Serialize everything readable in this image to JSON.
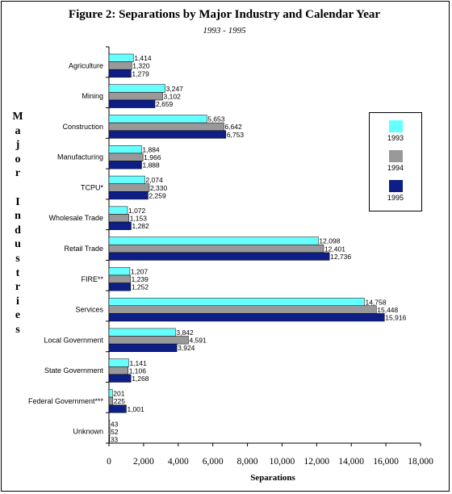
{
  "chart_data": {
    "type": "bar",
    "orientation": "horizontal",
    "title": "Figure 2: Separations by Major Industry and Calendar Year",
    "subtitle": "1993 - 1995",
    "xlabel": "Separations",
    "ylabel": "Major Industries",
    "xlim": [
      0,
      18000
    ],
    "xticks": [
      "0",
      "2,000",
      "4,000",
      "6,000",
      "8,000",
      "10,000",
      "12,000",
      "14,000",
      "16,000",
      "18,000"
    ],
    "categories": [
      "Agriculture",
      "Mining",
      "Construction",
      "Manufacturing",
      "TCPU*",
      "Wholesale Trade",
      "Retail Trade",
      "FIRE**",
      "Services",
      "Local Government",
      "State Government",
      "Federal Government***",
      "Unknown"
    ],
    "series": [
      {
        "name": "1993",
        "color": "#66ffff",
        "values": [
          1414,
          3247,
          5653,
          1884,
          2074,
          1072,
          12098,
          1207,
          14758,
          3842,
          1141,
          201,
          43
        ],
        "labels": [
          "1,414",
          "3,247",
          "5,653",
          "1,884",
          "2,074",
          "1,072",
          "12,098",
          "1,207",
          "14,758",
          "3,842",
          "1,141",
          "201",
          "43"
        ]
      },
      {
        "name": "1994",
        "color": "#999999",
        "values": [
          1320,
          3102,
          6642,
          1966,
          2330,
          1153,
          12401,
          1239,
          15448,
          4591,
          1106,
          225,
          52
        ],
        "labels": [
          "1,320",
          "3,102",
          "6,642",
          "1,966",
          "2,330",
          "1,153",
          "12,401",
          "1,239",
          "15,448",
          "4,591",
          "1,106",
          "225",
          "52"
        ]
      },
      {
        "name": "1995",
        "color": "#0d1f87",
        "values": [
          1279,
          2659,
          6753,
          1888,
          2259,
          1282,
          12736,
          1252,
          15916,
          3924,
          1268,
          1001,
          33
        ],
        "labels": [
          "1,279",
          "2,659",
          "6,753",
          "1,888",
          "2,259",
          "1,282",
          "12,736",
          "1,252",
          "15,916",
          "3,924",
          "1,268",
          "1,001",
          "33"
        ]
      }
    ],
    "legend_position": "right",
    "grid": false
  }
}
